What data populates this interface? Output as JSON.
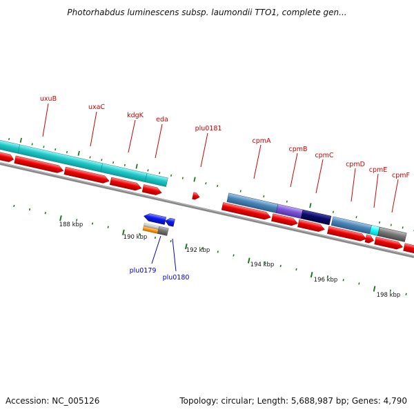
{
  "title": "Photorhabdus luminescens subsp. laumondii TTO1, complete gen...",
  "footer": {
    "accession": "Accession: NC_005126",
    "topology": "Topology: circular; Length: 5,688,987 bp; Genes: 4,790"
  },
  "colors": {
    "cds_red": "#ee0000",
    "cyan": "#1ec8c8",
    "steel_blue": "#4a86b8",
    "purple": "#7b55d6",
    "navy": "#0a0a6a",
    "bright_cyan": "#19ffff",
    "grey": "#777777",
    "blue": "#0a1aee",
    "orange": "#ff9a10",
    "light_grey": "#c8c8c8",
    "tick_green": "#1a7a1a",
    "backbone": "#888888",
    "label_red": "#cc0000",
    "label_blue": "#0000cc"
  },
  "gene_labels_red": [
    {
      "text": "uxuB"
    },
    {
      "text": "uxaC"
    },
    {
      "text": "kdgK"
    },
    {
      "text": "eda"
    },
    {
      "text": "plu0181"
    },
    {
      "text": "cpmA"
    },
    {
      "text": "cpmB"
    },
    {
      "text": "cpmC"
    },
    {
      "text": "cpmD"
    },
    {
      "text": "cpmE"
    },
    {
      "text": "cpmF"
    }
  ],
  "gene_labels_blue": [
    {
      "text": "plu0179"
    },
    {
      "text": "plu0180"
    }
  ],
  "kbp_labels": [
    "188 kbp",
    "190 kbp",
    "192 kbp",
    "194 kbp",
    "196 kbp",
    "198 kbp"
  ]
}
